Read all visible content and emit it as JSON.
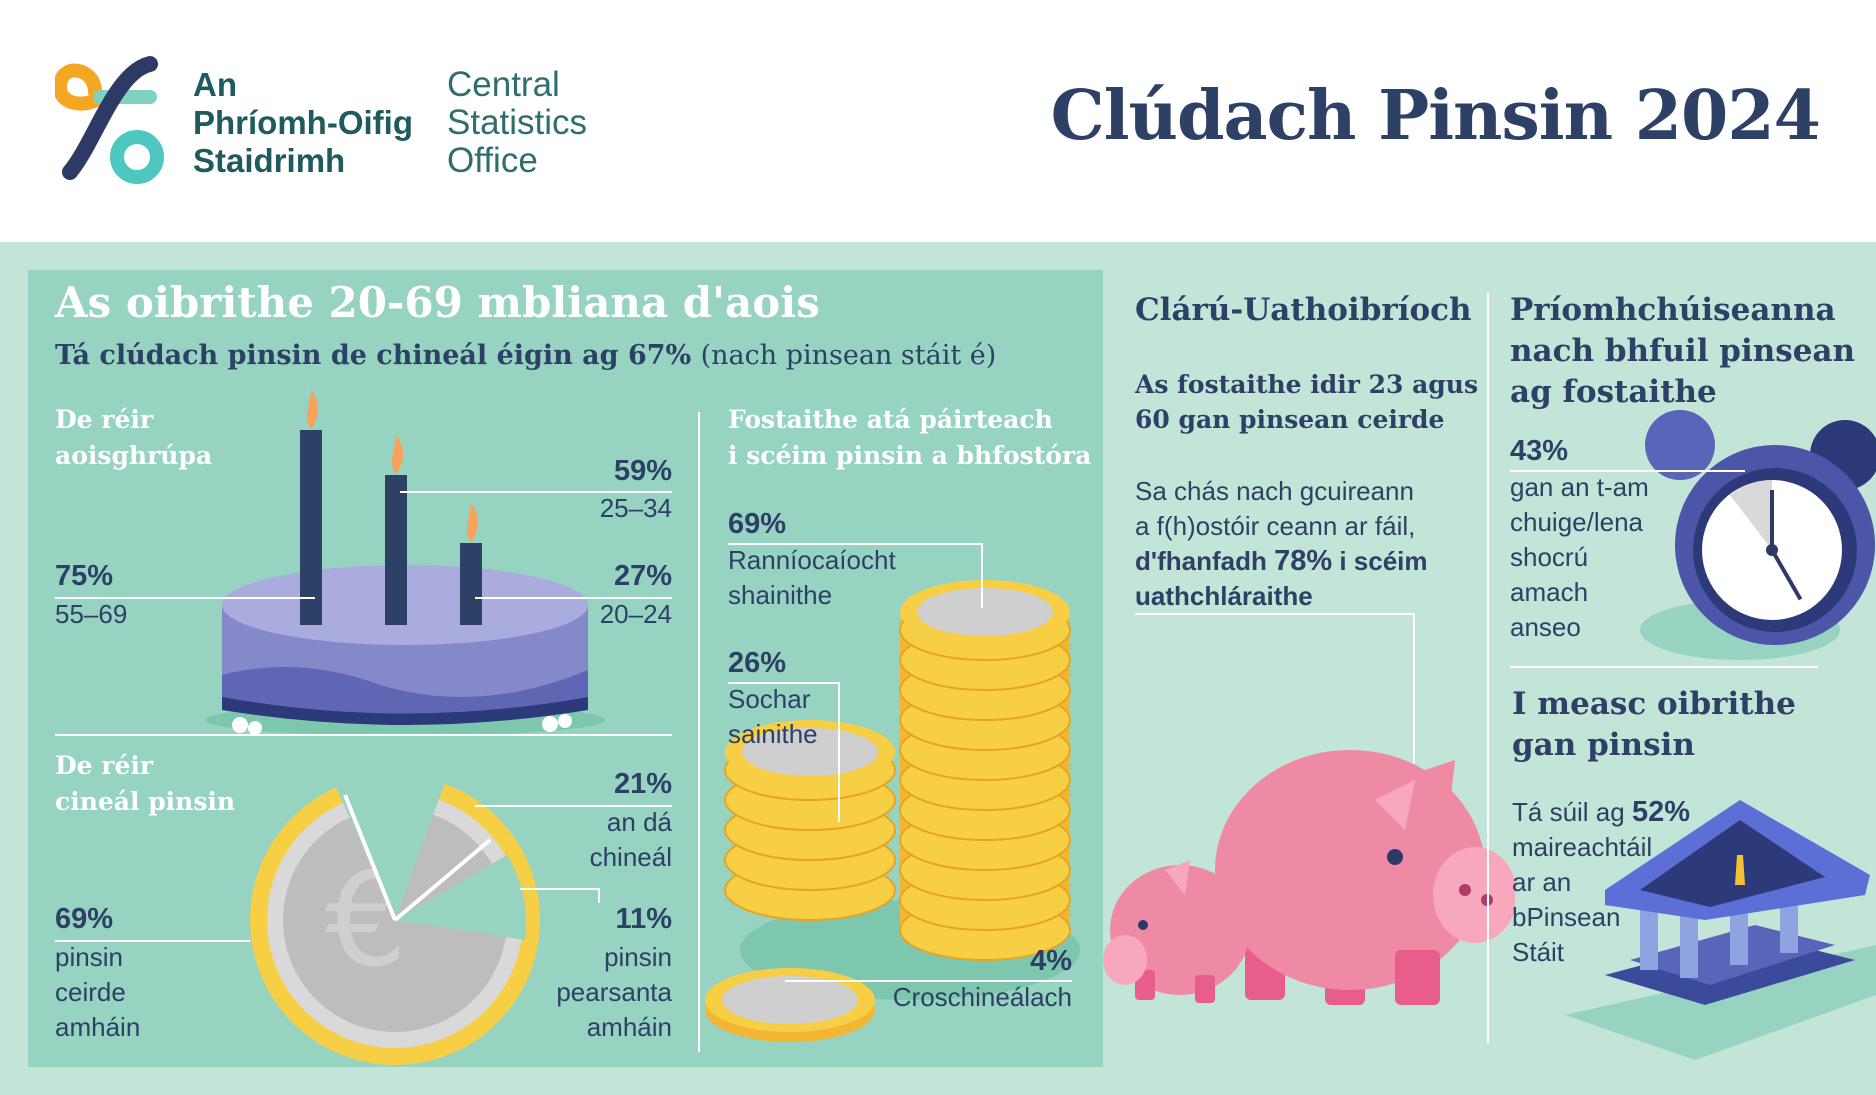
{
  "header": {
    "org_ga": [
      "An",
      "Phríomh-Oifig",
      "Staidrimh"
    ],
    "org_en": [
      "Central",
      "Statistics",
      "Office"
    ],
    "title": "Clúdach Pinsin 2024"
  },
  "colors": {
    "navy": "#2d4166",
    "teal_panel": "#97d3c1",
    "band": "#c2e5d7",
    "white": "#ffffff",
    "pink": "#ef8aa5",
    "coin_gold": "#f5c033"
  },
  "workers": {
    "title": "As oibrithe 20-69 mbliana d'aois",
    "subtitle_main": "Tá clúdach pinsin de chineál éigin ag 67%",
    "subtitle_note": "(nach pinsean stáit é)",
    "age": {
      "heading": [
        "De réir",
        "aoisghrúpa"
      ],
      "groups": [
        {
          "pct": "59%",
          "label": "25–34",
          "value": 59
        },
        {
          "pct": "75%",
          "label": "55–69",
          "value": 75
        },
        {
          "pct": "27%",
          "label": "20–24",
          "value": 27
        }
      ]
    },
    "type": {
      "heading": [
        "De réir",
        "cineál pinsin"
      ],
      "groups": [
        {
          "pct": "21%",
          "label": [
            "an dá",
            "chineál"
          ],
          "value": 21
        },
        {
          "pct": "69%",
          "label": [
            "pinsin",
            "ceirde",
            "amháin"
          ],
          "value": 69
        },
        {
          "pct": "11%",
          "label": [
            "pinsin",
            "pearsanta",
            "amháin"
          ],
          "value": 11
        }
      ]
    },
    "employer": {
      "heading": [
        "Fostaithe atá páirteach",
        "i scéim pinsin a bhfostóra"
      ],
      "groups": [
        {
          "pct": "69%",
          "label": [
            "Ranníocaíocht",
            "shainithe"
          ],
          "value": 69
        },
        {
          "pct": "26%",
          "label": [
            "Sochar",
            "sainithe"
          ],
          "value": 26
        },
        {
          "pct": "4%",
          "label": [
            "Croschineálach"
          ],
          "value": 4
        }
      ]
    }
  },
  "auto": {
    "heading": "Clárú-Uathoibríoch",
    "sub": [
      "As fostaithe idir 23 agus",
      "60 gan pinsean ceirde"
    ],
    "text": [
      "Sa chás nach gcuireann",
      "a f(h)ostóir ceann ar fáil,"
    ],
    "bold_line1_pre": "d'fhanfadh ",
    "bold_line1_pct": "78%",
    "bold_line1_post": " i scéim",
    "bold_line2": "uathchláraithe"
  },
  "reasons": {
    "heading": [
      "Príomhchúiseanna",
      "nach bhfuil pinsean",
      "ag fostaithe"
    ],
    "pct": "43%",
    "text": [
      "gan an t-am",
      "chuige/lena",
      "shocrú",
      "amach",
      "anseo"
    ]
  },
  "no_pension": {
    "heading": [
      "I measc oibrithe",
      "gan pinsin"
    ],
    "line1_pre": "Tá súil ag ",
    "pct": "52%",
    "text": [
      "maireachtáil",
      "ar an",
      "bPinsean",
      "Stáit"
    ]
  }
}
